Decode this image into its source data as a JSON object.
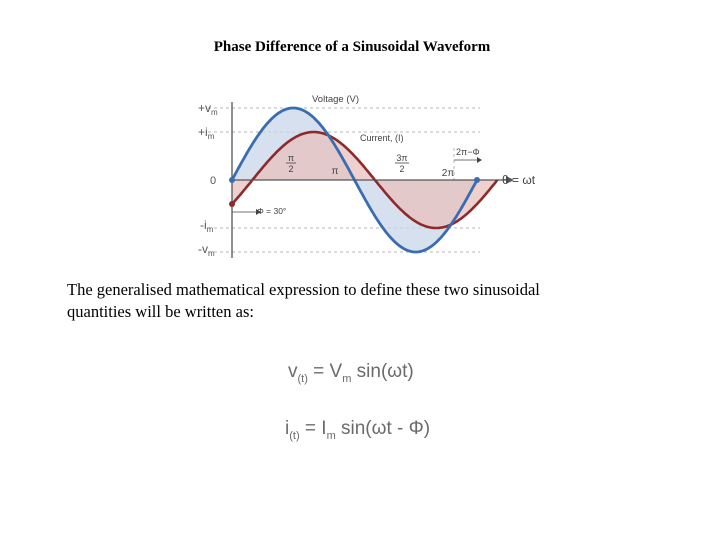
{
  "title": "Phase Difference of a Sinusoidal Waveform",
  "diagram": {
    "y_labels": {
      "pos_vm": "+v",
      "pos_vm_sub": "m",
      "pos_im": "+i",
      "pos_im_sub": "m",
      "zero": "0",
      "neg_im": "-i",
      "neg_im_sub": "m",
      "neg_vm": "-v",
      "neg_vm_sub": "m"
    },
    "voltage_label": "Voltage (V)",
    "current_label": "Current, (I)",
    "tick_pi_over_2": {
      "num": "π",
      "den": "2"
    },
    "tick_pi": "π",
    "tick_3pi_over_2": {
      "num": "3π",
      "den": "2"
    },
    "tick_2pi": "2π",
    "shift_label": "2π−Φ",
    "phase_label": "Φ = 30°",
    "x_axis_label": "θ = ωt",
    "colors": {
      "voltage": "#3a6db0",
      "current": "#8e2a2a",
      "voltage_fill": "#c9d5ea",
      "current_fill": "#e8c1bf"
    }
  },
  "body": "The generalised mathematical expression to define these two sinusoidal quantities will be written as:",
  "equations": {
    "v": {
      "lhs": "v",
      "sub": "(t)",
      "rhs_a": " = V",
      "rhs_sub": "m",
      "rhs_b": " sin(ωt)"
    },
    "i": {
      "lhs": "i",
      "sub": "(t)",
      "rhs_a": " = I",
      "rhs_sub": "m",
      "rhs_b": " sin(ωt - Φ)"
    }
  }
}
